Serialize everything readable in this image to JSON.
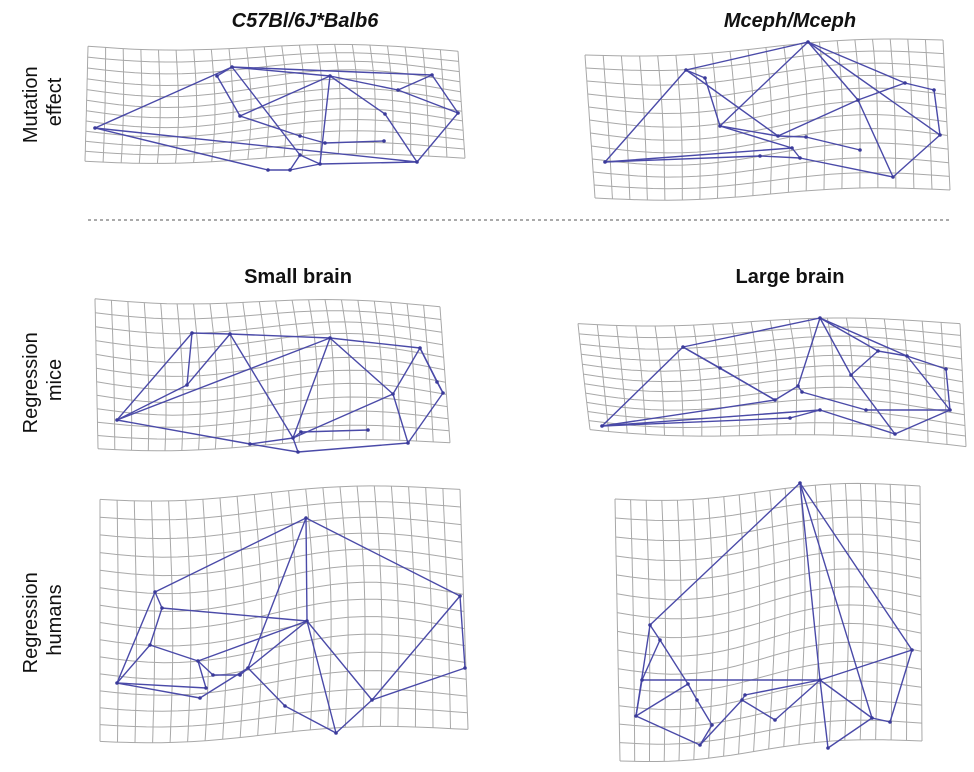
{
  "column_titles": {
    "top_left": "C57Bl/6J*Balb6",
    "top_right": "Mceph/Mceph",
    "mid_left": "Small brain",
    "mid_right": "Large brain"
  },
  "row_labels": {
    "mutation": [
      "Mutation",
      "effect"
    ],
    "regression_mice": [
      "Regression",
      "mice"
    ],
    "regression_humans": [
      "Regression",
      "humans"
    ]
  },
  "colors": {
    "grid": "#a8a8a8",
    "wireframe": "#4a4aa8",
    "text": "#111111"
  }
}
